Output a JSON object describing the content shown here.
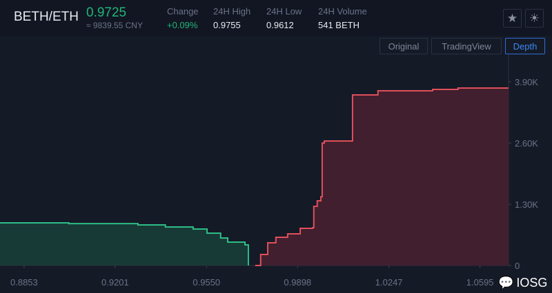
{
  "header": {
    "pair": "BETH/ETH",
    "last_price": "0.9725",
    "cny_price": "≈ 9839.55 CNY",
    "stats": [
      {
        "label": "Change",
        "value": "+0.09%"
      },
      {
        "label": "24H High",
        "value": "0.9755"
      },
      {
        "label": "24H Low",
        "value": "0.9612"
      },
      {
        "label": "24H Volume",
        "value": "541 BETH"
      }
    ],
    "icons": [
      "star-icon",
      "sun-icon"
    ]
  },
  "toolbar": {
    "views": [
      "Original",
      "TradingView",
      "Depth"
    ],
    "active": "Depth"
  },
  "watermark": "IOSG",
  "colors": {
    "bid": "#2ebd85",
    "ask": "#e0505a",
    "bid_fill": "#183a37",
    "ask_fill": "#411f2f",
    "accent": "#3a88f0"
  },
  "chart_data": {
    "type": "area",
    "title": "",
    "xlabel": "",
    "ylabel": "",
    "x_ticks": [
      "0.8853",
      "0.9201",
      "0.9550",
      "0.9898",
      "1.0247",
      "1.0595"
    ],
    "y_ticks": [
      "0",
      "1.30K",
      "2.60K",
      "3.90K"
    ],
    "xlim": [
      0.8761,
      1.0704
    ],
    "ylim": [
      0,
      4470
    ],
    "grid": false,
    "series": [
      {
        "side": "bid",
        "points": [
          [
            0.8761,
            905
          ],
          [
            0.9,
            905
          ],
          [
            0.9024,
            890
          ],
          [
            0.9288,
            862
          ],
          [
            0.9393,
            818
          ],
          [
            0.9499,
            774
          ],
          [
            0.9552,
            686
          ],
          [
            0.9604,
            584
          ],
          [
            0.9631,
            497
          ],
          [
            0.9697,
            438
          ],
          [
            0.971,
            0
          ]
        ]
      },
      {
        "side": "ask",
        "points": [
          [
            0.9736,
            0
          ],
          [
            0.9757,
            234
          ],
          [
            0.9784,
            482
          ],
          [
            0.9815,
            599
          ],
          [
            0.986,
            672
          ],
          [
            0.9908,
            789
          ],
          [
            0.9955,
            803
          ],
          [
            0.996,
            1256
          ],
          [
            0.9973,
            1373
          ],
          [
            0.9987,
            1461
          ],
          [
            0.9992,
            2600
          ],
          [
            1.0,
            2644
          ],
          [
            1.0108,
            3623
          ],
          [
            1.0205,
            3710
          ],
          [
            1.0414,
            3740
          ],
          [
            1.0511,
            3769
          ],
          [
            1.0704,
            3769
          ]
        ]
      }
    ]
  }
}
